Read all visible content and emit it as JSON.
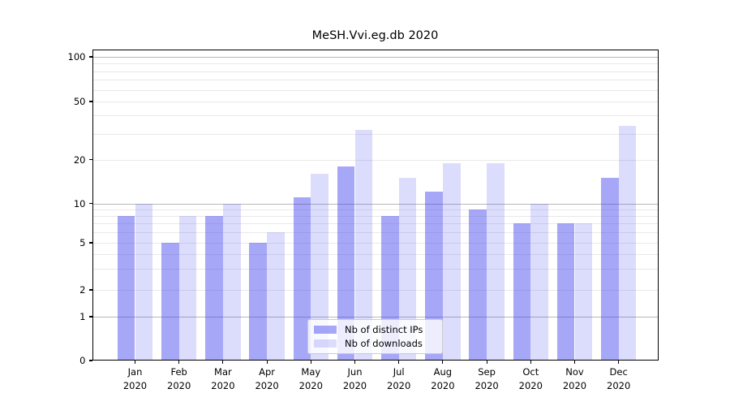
{
  "chart_data": {
    "type": "bar",
    "title": "MeSH.Vvi.eg.db 2020",
    "categories": [
      "Jan 2020",
      "Feb 2020",
      "Mar 2020",
      "Apr 2020",
      "May 2020",
      "Jun 2020",
      "Jul 2020",
      "Aug 2020",
      "Sep 2020",
      "Oct 2020",
      "Nov 2020",
      "Dec 2020"
    ],
    "series": [
      {
        "name": "Nb of distinct IPs",
        "color": "rgba(60,60,238,0.45)",
        "values": [
          8,
          5,
          8,
          5,
          11,
          18,
          8,
          12,
          9,
          7,
          7,
          15
        ]
      },
      {
        "name": "Nb of downloads",
        "color": "rgba(60,60,238,0.18)",
        "values": [
          10,
          8,
          10,
          6,
          16,
          32,
          15,
          19,
          19,
          10,
          7,
          34
        ]
      }
    ],
    "xlabel": "",
    "ylabel": "",
    "yscale": "asinh-log",
    "ytick_labels": [
      "0",
      "1",
      "2",
      "5",
      "10",
      "20",
      "50",
      "100"
    ],
    "ytick_values": [
      0,
      1,
      2,
      5,
      10,
      20,
      50,
      100
    ],
    "ylim": [
      0,
      113
    ],
    "grid": "horizontal major (1,10,100) + minor (2-9, 20-90)",
    "legend_position": "bottom-center",
    "colors": {
      "bar_distinct_ips": "#a8a8f6",
      "bar_downloads": "#dcdcfb",
      "grid_major": "#b8b8b8",
      "grid_minor": "#e9e9e9",
      "background": "#ffffff",
      "axis": "#000000"
    }
  }
}
